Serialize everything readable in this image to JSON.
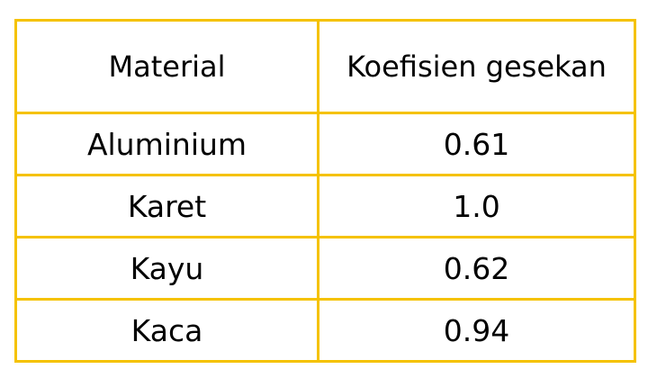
{
  "table": {
    "headers": [
      "Material",
      "Koefisien gesekan"
    ],
    "rows": [
      [
        "Aluminium",
        "0.61"
      ],
      [
        "Karet",
        "1.0"
      ],
      [
        "Kayu",
        "0.62"
      ],
      [
        "Kaca",
        "0.94"
      ]
    ]
  },
  "colors": {
    "border": "#f5c200",
    "text": "#000000",
    "background": "#ffffff"
  }
}
